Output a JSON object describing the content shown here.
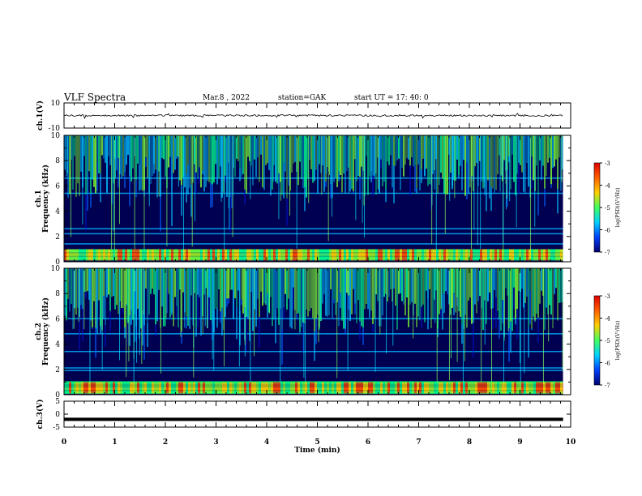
{
  "header": {
    "title": "VLF Spectra",
    "date": "Mar.8 , 2022",
    "station": "station=GAK",
    "start": "start UT = 17: 40: 0"
  },
  "colorbar_label": "log(PSD)(V²/Hz)",
  "colorbar_ticks": [
    "-3",
    "-4",
    "-5",
    "-6",
    "-7"
  ],
  "colorbar_colors": [
    "#e00000",
    "#ff6000",
    "#ffd000",
    "#40ff60",
    "#00d0ff",
    "#0040ff",
    "#000070"
  ],
  "chart_data": [
    {
      "type": "line",
      "panel": "ch1-waveform",
      "ylabel": "ch.1(V)",
      "ylim": [
        -10,
        10
      ],
      "yticks": [
        "10",
        "-10"
      ],
      "xlim": [
        0,
        10
      ],
      "description_values": {
        "baseline": 0
      }
    },
    {
      "type": "heatmap",
      "panel": "ch1-spectrogram",
      "ylabel": "ch.1 Frequency (kHz)",
      "ylim": [
        0,
        10
      ],
      "yticks": [
        "0",
        "2",
        "4",
        "6",
        "8",
        "10"
      ],
      "xlim": [
        0,
        10
      ],
      "bands_khz": [
        0.3,
        0.6,
        0.9,
        1.4,
        2.2,
        2.6,
        5.4,
        6.6
      ],
      "zlabel": "log(PSD)(V²/Hz)",
      "zlim": [
        -7,
        -3
      ]
    },
    {
      "type": "heatmap",
      "panel": "ch2-spectrogram",
      "ylabel": "ch.2 Frequency (kHz)",
      "ylim": [
        0,
        10
      ],
      "yticks": [
        "0",
        "2",
        "4",
        "6",
        "8",
        "10"
      ],
      "xlim": [
        0,
        10
      ],
      "bands_khz": [
        0.2,
        0.5,
        1.0,
        1.9,
        2.1,
        3.4,
        4.8,
        6.0
      ],
      "zlabel": "log(PSD)(V²/Hz)",
      "zlim": [
        -7,
        -3
      ]
    },
    {
      "type": "line",
      "panel": "ch3-waveform",
      "ylabel": "ch.3(V)",
      "ylim": [
        -5,
        5
      ],
      "yticks": [
        "5",
        "0",
        "-5"
      ],
      "xlim": [
        0,
        10
      ],
      "values": [
        -2,
        -2
      ]
    }
  ],
  "xaxis": {
    "label": "Time (min)",
    "ticks": [
      "0",
      "1",
      "2",
      "3",
      "4",
      "5",
      "6",
      "7",
      "8",
      "9",
      "10"
    ],
    "data_end": 9.85
  }
}
